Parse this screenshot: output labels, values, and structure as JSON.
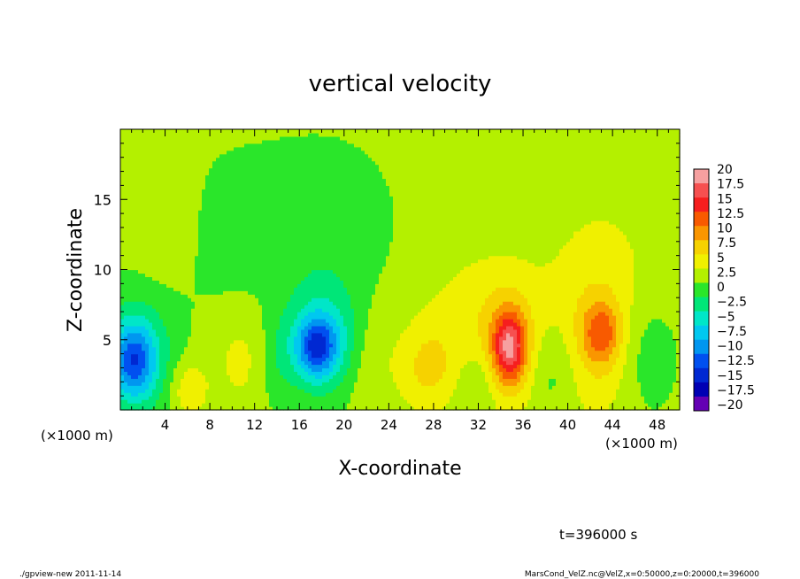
{
  "chart_data": {
    "type": "heatmap",
    "title": "vertical velocity",
    "xlabel": "X-coordinate",
    "ylabel": "Z-coordinate",
    "x_unit_left": "(×1000 m)",
    "x_unit_right": "(×1000 m)",
    "xlim": [
      0,
      50
    ],
    "ylim": [
      0,
      20
    ],
    "x_ticks": [
      4,
      8,
      12,
      16,
      20,
      24,
      28,
      32,
      36,
      40,
      44,
      48
    ],
    "x_tick_labels": [
      "4",
      "8",
      "12",
      "16",
      "20",
      "24",
      "28",
      "32",
      "36",
      "40",
      "44",
      "48"
    ],
    "y_ticks": [
      5,
      10,
      15
    ],
    "y_tick_labels": [
      "5",
      "10",
      "15"
    ],
    "colorbar": {
      "levels": [
        20,
        17.5,
        15,
        12.5,
        10,
        7.5,
        5,
        2.5,
        0,
        -2.5,
        -5,
        -7.5,
        -10,
        -12.5,
        -15,
        -17.5,
        -20
      ],
      "labels": [
        "20",
        "17.5",
        "15",
        "12.5",
        "10",
        "7.5",
        "5",
        "2.5",
        "0",
        "−2.5",
        "−5",
        "−7.5",
        "−10",
        "−12.5",
        "−15",
        "−17.5",
        "−20"
      ],
      "colors": [
        "#f6a0a0",
        "#f65050",
        "#f61e1e",
        "#f85a00",
        "#fa9600",
        "#f6d200",
        "#f0f000",
        "#b4f000",
        "#2ae62a",
        "#00e678",
        "#00e6c8",
        "#00c8f0",
        "#0096f0",
        "#0050f0",
        "#0028d2",
        "#0000b4",
        "#6400b4"
      ]
    },
    "features": [
      {
        "x": 1.2,
        "z": 3.5,
        "value": -10,
        "sx": 1.3,
        "sz": 1.8
      },
      {
        "x": 1.5,
        "z": 4.0,
        "value": -6,
        "sx": 2.4,
        "sz": 3.2
      },
      {
        "x": 17.5,
        "z": 4.5,
        "value": -11,
        "sx": 1.3,
        "sz": 1.5
      },
      {
        "x": 18.5,
        "z": 5.0,
        "value": -7,
        "sx": 2.4,
        "sz": 2.8
      },
      {
        "x": 18.0,
        "z": 12.5,
        "value": -2,
        "sx": 4.5,
        "sz": 4.5
      },
      {
        "x": 34.8,
        "z": 4.5,
        "value": 12,
        "sx": 1.0,
        "sz": 1.7
      },
      {
        "x": 34.6,
        "z": 4.8,
        "value": 6,
        "sx": 2.3,
        "sz": 3.5
      },
      {
        "x": 43.0,
        "z": 5.5,
        "value": 7.5,
        "sx": 1.2,
        "sz": 1.6
      },
      {
        "x": 42.5,
        "z": 5.5,
        "value": 4.5,
        "sx": 3.2,
        "sz": 4.5
      },
      {
        "x": 27.5,
        "z": 3.0,
        "value": 4.5,
        "sx": 1.8,
        "sz": 2.2
      },
      {
        "x": 30.0,
        "z": 7.0,
        "value": 2.0,
        "sx": 3.0,
        "sz": 4.0
      },
      {
        "x": 11.0,
        "z": 4.0,
        "value": 3.0,
        "sx": 2.5,
        "sz": 3.0
      },
      {
        "x": 6.0,
        "z": 1.5,
        "value": 4.0,
        "sx": 1.2,
        "sz": 1.5
      },
      {
        "x": 14.0,
        "z": 3.5,
        "value": -3,
        "sx": 1.2,
        "sz": 2.5
      },
      {
        "x": 22.0,
        "z": 4.0,
        "value": 2.5,
        "sx": 2.0,
        "sz": 3.0
      },
      {
        "x": 38.5,
        "z": 3.0,
        "value": -3.5,
        "sx": 1.5,
        "sz": 2.5
      },
      {
        "x": 32.0,
        "z": 2.0,
        "value": -3,
        "sx": 1.3,
        "sz": 2.0
      },
      {
        "x": 47.0,
        "z": 4.0,
        "value": -3,
        "sx": 1.8,
        "sz": 3.0
      },
      {
        "x": 9.0,
        "z": 11.0,
        "value": -1.5,
        "sx": 4.0,
        "sz": 5.0
      },
      {
        "x": 4.0,
        "z": 12.0,
        "value": 1.5,
        "sx": 2.5,
        "sz": 4.0
      },
      {
        "x": 44.0,
        "z": 13.0,
        "value": 1.0,
        "sx": 5.0,
        "sz": 4.0
      }
    ]
  },
  "annotation": "t=396000 s",
  "footer_left": "./gpview-new  2011-11-14",
  "footer_right": "MarsCond_VelZ.nc@VelZ,x=0:50000,z=0:20000,t=396000"
}
